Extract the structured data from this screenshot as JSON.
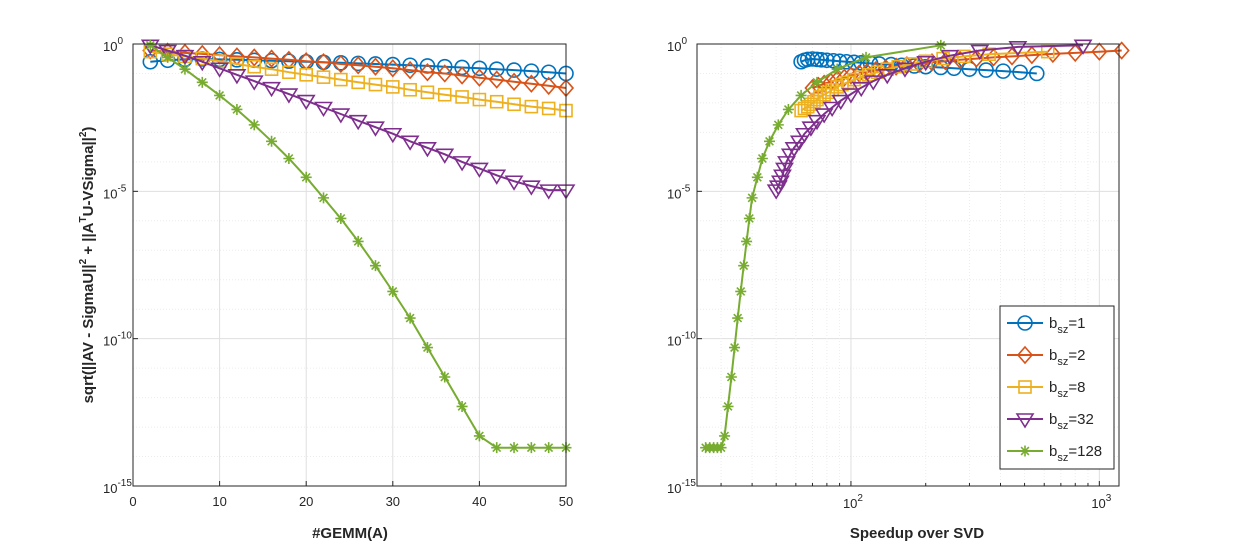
{
  "chart_data": [
    {
      "type": "line",
      "xlabel": "#GEMM(A)",
      "ylabel": "sqrt(||AV - SigmaU||^2 + ||A^T U-VSigma||^2)",
      "ylabel_parts": [
        "sqrt(||AV - SigmaU||",
        "2",
        " + ||A",
        "T",
        "U-VSigma||",
        "2",
        ")"
      ],
      "xlim": [
        0,
        50
      ],
      "ylim": [
        1e-15,
        1
      ],
      "yscale": "log",
      "grid": true,
      "x_ticks": [
        "0",
        "10",
        "20",
        "30",
        "40",
        "50"
      ],
      "y_ticks": [
        {
          "base": "10",
          "exp": "0"
        },
        {
          "base": "10",
          "exp": "-5"
        },
        {
          "base": "10",
          "exp": "-10"
        },
        {
          "base": "10",
          "exp": "-15"
        }
      ],
      "series": [
        {
          "name": "bsz=1",
          "x": [
            2,
            4,
            6,
            8,
            10,
            12,
            14,
            16,
            18,
            20,
            22,
            24,
            26,
            28,
            30,
            32,
            34,
            36,
            38,
            40,
            42,
            44,
            46,
            48,
            50
          ],
          "y": [
            0.25,
            0.28,
            0.3,
            0.31,
            0.3,
            0.29,
            0.28,
            0.27,
            0.26,
            0.25,
            0.24,
            0.23,
            0.22,
            0.21,
            0.2,
            0.19,
            0.18,
            0.17,
            0.16,
            0.15,
            0.14,
            0.13,
            0.12,
            0.11,
            0.1
          ]
        },
        {
          "name": "bsz=2",
          "x": [
            2,
            4,
            6,
            8,
            10,
            12,
            14,
            16,
            18,
            20,
            22,
            24,
            26,
            28,
            30,
            32,
            34,
            36,
            38,
            40,
            42,
            44,
            46,
            48,
            50
          ],
          "y": [
            0.6,
            0.55,
            0.5,
            0.46,
            0.42,
            0.38,
            0.35,
            0.32,
            0.29,
            0.26,
            0.24,
            0.21,
            0.19,
            0.17,
            0.15,
            0.13,
            0.11,
            0.1,
            0.085,
            0.072,
            0.062,
            0.052,
            0.045,
            0.038,
            0.032
          ]
        },
        {
          "name": "bsz=8",
          "x": [
            2,
            4,
            6,
            8,
            10,
            12,
            14,
            16,
            18,
            20,
            22,
            24,
            26,
            28,
            30,
            32,
            34,
            36,
            38,
            40,
            42,
            44,
            46,
            48,
            50
          ],
          "y": [
            0.55,
            0.45,
            0.38,
            0.32,
            0.26,
            0.21,
            0.17,
            0.14,
            0.11,
            0.09,
            0.075,
            0.062,
            0.05,
            0.042,
            0.035,
            0.028,
            0.023,
            0.019,
            0.016,
            0.013,
            0.011,
            0.009,
            0.0075,
            0.0065,
            0.0055
          ]
        },
        {
          "name": "bsz=32",
          "x": [
            2,
            4,
            6,
            8,
            10,
            12,
            14,
            16,
            18,
            20,
            22,
            24,
            26,
            28,
            30,
            32,
            34,
            36,
            38,
            40,
            42,
            44,
            46,
            48,
            50
          ],
          "y": [
            0.9,
            0.6,
            0.4,
            0.25,
            0.15,
            0.09,
            0.055,
            0.033,
            0.02,
            0.012,
            0.007,
            0.0042,
            0.0025,
            0.0015,
            0.0009,
            0.0005,
            0.0003,
            0.00018,
            0.0001,
            6e-05,
            3.5e-05,
            2.2e-05,
            1.5e-05,
            1.1e-05,
            1.1e-05
          ]
        },
        {
          "name": "bsz=128",
          "x": [
            2,
            4,
            6,
            8,
            10,
            12,
            14,
            16,
            18,
            20,
            22,
            24,
            26,
            28,
            30,
            32,
            34,
            36,
            38,
            40,
            42,
            44,
            46,
            48,
            50
          ],
          "y": [
            0.9,
            0.35,
            0.14,
            0.05,
            0.018,
            0.006,
            0.0018,
            0.0005,
            0.00013,
            3e-05,
            6e-06,
            1.2e-06,
            2e-07,
            3e-08,
            4e-09,
            5e-10,
            5e-11,
            5e-12,
            5e-13,
            5e-14,
            2e-14,
            2e-14,
            2e-14,
            2e-14,
            2e-14
          ]
        }
      ]
    },
    {
      "type": "line",
      "xlabel": "Speedup over SVD",
      "ylabel": "",
      "xlim": [
        24,
        1200
      ],
      "ylim": [
        1e-15,
        1
      ],
      "xscale": "log",
      "yscale": "log",
      "grid": true,
      "x_ticks": [
        {
          "base": "10",
          "exp": "2"
        },
        {
          "base": "10",
          "exp": "3"
        }
      ],
      "y_ticks": [
        {
          "base": "10",
          "exp": "0"
        },
        {
          "base": "10",
          "exp": "-5"
        },
        {
          "base": "10",
          "exp": "-10"
        },
        {
          "base": "10",
          "exp": "-15"
        }
      ],
      "legend_position": "bottom-right",
      "legend": [
        {
          "base": "b",
          "sub": "sz",
          "suffix": "=1"
        },
        {
          "base": "b",
          "sub": "sz",
          "suffix": "=2"
        },
        {
          "base": "b",
          "sub": "sz",
          "suffix": "=8"
        },
        {
          "base": "b",
          "sub": "sz",
          "suffix": "=32"
        },
        {
          "base": "b",
          "sub": "sz",
          "suffix": "=128"
        }
      ],
      "series": [
        {
          "name": "bsz=1",
          "x": [
            63,
            65,
            67,
            70,
            73,
            76,
            80,
            85,
            90,
            96,
            103,
            110,
            120,
            130,
            145,
            160,
            180,
            200,
            230,
            260,
            300,
            350,
            410,
            480,
            560
          ],
          "y": [
            0.25,
            0.28,
            0.3,
            0.31,
            0.3,
            0.29,
            0.28,
            0.27,
            0.26,
            0.25,
            0.24,
            0.23,
            0.22,
            0.21,
            0.2,
            0.19,
            0.18,
            0.17,
            0.16,
            0.15,
            0.14,
            0.13,
            0.12,
            0.11,
            0.1
          ]
        },
        {
          "name": "bsz=2",
          "x": [
            70,
            74,
            78,
            83,
            88,
            94,
            100,
            108,
            116,
            126,
            138,
            152,
            168,
            188,
            212,
            240,
            275,
            320,
            375,
            445,
            535,
            650,
            800,
            1000,
            1230
          ],
          "y": [
            0.032,
            0.038,
            0.045,
            0.052,
            0.062,
            0.072,
            0.085,
            0.1,
            0.11,
            0.13,
            0.15,
            0.17,
            0.19,
            0.21,
            0.24,
            0.26,
            0.29,
            0.32,
            0.35,
            0.38,
            0.42,
            0.46,
            0.5,
            0.55,
            0.6
          ]
        },
        {
          "name": "bsz=8",
          "x": [
            63,
            65,
            67,
            69,
            71,
            73,
            75,
            78,
            81,
            84,
            88,
            92,
            97,
            103,
            110,
            118,
            128,
            140,
            155,
            175,
            200,
            235,
            285,
            360,
            620
          ],
          "y": [
            0.0055,
            0.0065,
            0.0075,
            0.009,
            0.011,
            0.013,
            0.016,
            0.019,
            0.023,
            0.028,
            0.035,
            0.042,
            0.05,
            0.062,
            0.075,
            0.09,
            0.11,
            0.14,
            0.17,
            0.21,
            0.26,
            0.32,
            0.38,
            0.45,
            0.55
          ]
        },
        {
          "name": "bsz=32",
          "x": [
            50,
            51,
            52,
            53,
            54,
            55,
            57,
            59,
            62,
            65,
            69,
            73,
            78,
            84,
            91,
            100,
            110,
            123,
            140,
            165,
            200,
            250,
            330,
            470,
            860
          ],
          "y": [
            1.1e-05,
            1.5e-05,
            2.2e-05,
            3.5e-05,
            6e-05,
            0.0001,
            0.00018,
            0.0003,
            0.0005,
            0.0009,
            0.0015,
            0.0025,
            0.0042,
            0.007,
            0.012,
            0.02,
            0.033,
            0.055,
            0.09,
            0.15,
            0.25,
            0.4,
            0.6,
            0.8,
            0.9
          ]
        },
        {
          "name": "bsz=128",
          "x": [
            26,
            27,
            28,
            29,
            30,
            31,
            32,
            33,
            34,
            35,
            36,
            37,
            38,
            39,
            40,
            42,
            44,
            47,
            51,
            56,
            63,
            73,
            88,
            115,
            230
          ],
          "y": [
            2e-14,
            2e-14,
            2e-14,
            2e-14,
            2e-14,
            5e-14,
            5e-13,
            5e-12,
            5e-11,
            5e-10,
            4e-09,
            3e-08,
            2e-07,
            1.2e-06,
            6e-06,
            3e-05,
            0.00013,
            0.0005,
            0.0018,
            0.006,
            0.018,
            0.05,
            0.14,
            0.35,
            0.9
          ]
        }
      ]
    }
  ],
  "colors": {
    "bsz=1": "#0072BD",
    "bsz=2": "#D95319",
    "bsz=8": "#EDB120",
    "bsz=32": "#7E2F8E",
    "bsz=128": "#77AC30"
  },
  "markers": {
    "bsz=1": "circle",
    "bsz=2": "diamond",
    "bsz=8": "square",
    "bsz=32": "triangle-down",
    "bsz=128": "asterisk"
  }
}
